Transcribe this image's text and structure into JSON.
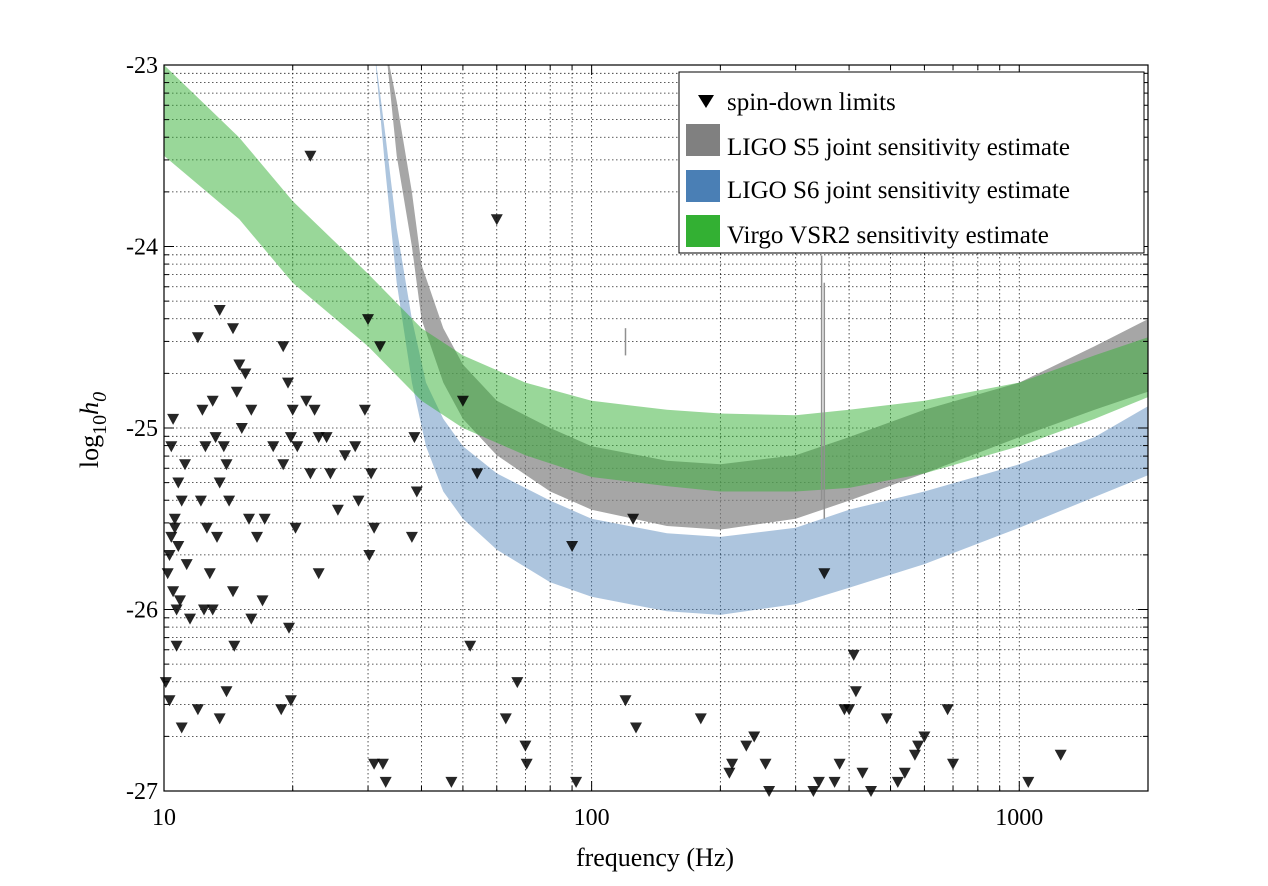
{
  "chart_data": {
    "type": "scatter",
    "xlabel": "frequency (Hz)",
    "ylabel_main": "log",
    "ylabel_sub": "10",
    "ylabel_var": "h",
    "ylabel_var_sub": "0",
    "x_scale": "log",
    "xlim": [
      10,
      2000
    ],
    "ylim": [
      -27,
      -23
    ],
    "x_ticks": [
      {
        "value": 10,
        "label": "10"
      },
      {
        "value": 100,
        "label": "100"
      },
      {
        "value": 1000,
        "label": "1000"
      }
    ],
    "y_ticks": [
      {
        "value": -23,
        "label": "-23"
      },
      {
        "value": -24,
        "label": "-24"
      },
      {
        "value": -25,
        "label": "-25"
      },
      {
        "value": -26,
        "label": "-26"
      },
      {
        "value": -27,
        "label": "-27"
      }
    ],
    "grid": true,
    "legend_position": "top-right",
    "legend": [
      {
        "label": "spin-down limits",
        "kind": "marker",
        "color": "#000000"
      },
      {
        "label": "LIGO S5 joint sensitivity estimate",
        "kind": "patch",
        "color": "#808080"
      },
      {
        "label": "LIGO S6 joint sensitivity estimate",
        "kind": "patch",
        "color": "#4a7fb5"
      },
      {
        "label": "Virgo VSR2 sensitivity estimate",
        "kind": "patch",
        "color": "#33b033"
      }
    ],
    "bands": [
      {
        "name": "LIGO S6 joint sensitivity estimate",
        "color": "#4a7fb5",
        "opacity": 0.45,
        "upper": [
          [
            31,
            -22.9
          ],
          [
            33,
            -23.4
          ],
          [
            35,
            -23.9
          ],
          [
            38,
            -24.4
          ],
          [
            41,
            -24.75
          ],
          [
            45,
            -24.95
          ],
          [
            50,
            -25.1
          ],
          [
            60,
            -25.25
          ],
          [
            80,
            -25.4
          ],
          [
            100,
            -25.5
          ],
          [
            150,
            -25.58
          ],
          [
            200,
            -25.6
          ],
          [
            300,
            -25.55
          ],
          [
            400,
            -25.45
          ],
          [
            600,
            -25.35
          ],
          [
            1000,
            -25.2
          ],
          [
            1500,
            -25.05
          ],
          [
            2000,
            -24.88
          ]
        ],
        "lower": [
          [
            31,
            -22.9
          ],
          [
            33,
            -23.6
          ],
          [
            35,
            -24.2
          ],
          [
            38,
            -24.75
          ],
          [
            41,
            -25.1
          ],
          [
            45,
            -25.35
          ],
          [
            50,
            -25.5
          ],
          [
            60,
            -25.67
          ],
          [
            80,
            -25.85
          ],
          [
            100,
            -25.93
          ],
          [
            150,
            -26.01
          ],
          [
            200,
            -26.03
          ],
          [
            300,
            -25.97
          ],
          [
            400,
            -25.88
          ],
          [
            600,
            -25.75
          ],
          [
            1000,
            -25.55
          ],
          [
            1500,
            -25.38
          ],
          [
            2000,
            -25.26
          ]
        ]
      },
      {
        "name": "LIGO S5 joint sensitivity estimate",
        "color": "#808080",
        "opacity": 0.7,
        "upper": [
          [
            33,
            -22.9
          ],
          [
            35,
            -23.2
          ],
          [
            38,
            -23.7
          ],
          [
            40,
            -24.1
          ],
          [
            45,
            -24.45
          ],
          [
            50,
            -24.65
          ],
          [
            60,
            -24.85
          ],
          [
            80,
            -25.0
          ],
          [
            100,
            -25.1
          ],
          [
            150,
            -25.18
          ],
          [
            200,
            -25.2
          ],
          [
            300,
            -25.15
          ],
          [
            400,
            -25.05
          ],
          [
            600,
            -24.9
          ],
          [
            1000,
            -24.75
          ],
          [
            1500,
            -24.55
          ],
          [
            2000,
            -24.4
          ]
        ],
        "lower": [
          [
            33,
            -22.9
          ],
          [
            35,
            -23.5
          ],
          [
            38,
            -24.0
          ],
          [
            40,
            -24.4
          ],
          [
            45,
            -24.75
          ],
          [
            50,
            -24.95
          ],
          [
            60,
            -25.15
          ],
          [
            80,
            -25.35
          ],
          [
            100,
            -25.45
          ],
          [
            150,
            -25.54
          ],
          [
            200,
            -25.56
          ],
          [
            300,
            -25.5
          ],
          [
            400,
            -25.4
          ],
          [
            600,
            -25.25
          ],
          [
            1000,
            -25.05
          ],
          [
            1500,
            -24.9
          ],
          [
            2000,
            -24.8
          ]
        ]
      },
      {
        "name": "Virgo VSR2 sensitivity estimate",
        "color": "#33b033",
        "opacity": 0.5,
        "upper": [
          [
            10,
            -23.0
          ],
          [
            15,
            -23.4
          ],
          [
            20,
            -23.75
          ],
          [
            30,
            -24.15
          ],
          [
            40,
            -24.45
          ],
          [
            50,
            -24.6
          ],
          [
            70,
            -24.75
          ],
          [
            100,
            -24.85
          ],
          [
            150,
            -24.9
          ],
          [
            200,
            -24.92
          ],
          [
            300,
            -24.93
          ],
          [
            400,
            -24.9
          ],
          [
            600,
            -24.85
          ],
          [
            1000,
            -24.75
          ],
          [
            1500,
            -24.6
          ],
          [
            2000,
            -24.5
          ]
        ],
        "lower": [
          [
            10,
            -23.5
          ],
          [
            15,
            -23.85
          ],
          [
            20,
            -24.2
          ],
          [
            30,
            -24.55
          ],
          [
            40,
            -24.85
          ],
          [
            50,
            -25.0
          ],
          [
            70,
            -25.15
          ],
          [
            100,
            -25.27
          ],
          [
            150,
            -25.32
          ],
          [
            200,
            -25.35
          ],
          [
            300,
            -25.35
          ],
          [
            400,
            -25.33
          ],
          [
            600,
            -25.25
          ],
          [
            1000,
            -25.1
          ],
          [
            1500,
            -24.95
          ],
          [
            2000,
            -24.83
          ]
        ]
      }
    ],
    "spikes": [
      {
        "x": 120,
        "y_top": -24.45,
        "y_bottom": -24.6,
        "color": "#909090"
      },
      {
        "x": 345,
        "y_top": -24.05,
        "y_bottom": -25.4,
        "color": "#909090"
      },
      {
        "x": 350,
        "y_top": -24.2,
        "y_bottom": -25.5,
        "color": "#909090"
      }
    ],
    "series": [
      {
        "name": "spin-down limits",
        "marker": "triangle-down",
        "color": "#000000",
        "points": [
          [
            10.1,
            -26.4
          ],
          [
            10.2,
            -25.8
          ],
          [
            10.3,
            -25.7
          ],
          [
            10.4,
            -25.6
          ],
          [
            10.5,
            -25.9
          ],
          [
            10.6,
            -25.55
          ],
          [
            10.7,
            -26.0
          ],
          [
            10.8,
            -25.65
          ],
          [
            10.9,
            -25.95
          ],
          [
            11.0,
            -25.4
          ],
          [
            11.2,
            -25.2
          ],
          [
            11.3,
            -25.75
          ],
          [
            11.5,
            -26.05
          ],
          [
            10.3,
            -26.5
          ],
          [
            10.7,
            -26.2
          ],
          [
            11.0,
            -26.65
          ],
          [
            10.4,
            -25.1
          ],
          [
            10.5,
            -24.95
          ],
          [
            10.8,
            -25.3
          ],
          [
            10.6,
            -25.5
          ],
          [
            12.0,
            -24.5
          ],
          [
            12.3,
            -24.9
          ],
          [
            12.5,
            -25.1
          ],
          [
            12.2,
            -25.4
          ],
          [
            12.6,
            -25.55
          ],
          [
            12.8,
            -25.8
          ],
          [
            12.4,
            -26.0
          ],
          [
            12.0,
            -26.55
          ],
          [
            13.0,
            -24.85
          ],
          [
            13.2,
            -25.05
          ],
          [
            13.5,
            -25.3
          ],
          [
            13.3,
            -25.6
          ],
          [
            13.0,
            -26.0
          ],
          [
            13.8,
            -25.1
          ],
          [
            14.0,
            -25.2
          ],
          [
            14.2,
            -25.4
          ],
          [
            14.5,
            -25.9
          ],
          [
            14.6,
            -26.2
          ],
          [
            13.5,
            -26.6
          ],
          [
            13.5,
            -24.35
          ],
          [
            14.5,
            -24.45
          ],
          [
            15.0,
            -24.65
          ],
          [
            14.8,
            -24.8
          ],
          [
            15.2,
            -25.0
          ],
          [
            15.5,
            -24.7
          ],
          [
            16.0,
            -24.9
          ],
          [
            15.8,
            -25.5
          ],
          [
            16.5,
            -25.6
          ],
          [
            17.0,
            -25.95
          ],
          [
            16.0,
            -26.05
          ],
          [
            14.0,
            -26.45
          ],
          [
            17.2,
            -25.5
          ],
          [
            18.0,
            -25.1
          ],
          [
            19.0,
            -24.55
          ],
          [
            19.5,
            -24.75
          ],
          [
            20.0,
            -24.9
          ],
          [
            19.8,
            -25.05
          ],
          [
            20.5,
            -25.1
          ],
          [
            19.0,
            -25.2
          ],
          [
            20.3,
            -25.55
          ],
          [
            19.6,
            -26.1
          ],
          [
            19.8,
            -26.5
          ],
          [
            18.8,
            -26.55
          ],
          [
            22.0,
            -23.5
          ],
          [
            21.5,
            -24.85
          ],
          [
            22.5,
            -24.9
          ],
          [
            23.0,
            -25.05
          ],
          [
            22.0,
            -25.25
          ],
          [
            24.0,
            -25.05
          ],
          [
            24.5,
            -25.25
          ],
          [
            23.0,
            -25.8
          ],
          [
            25.5,
            -25.45
          ],
          [
            26.5,
            -25.15
          ],
          [
            28.0,
            -25.1
          ],
          [
            28.5,
            -25.4
          ],
          [
            30.0,
            -24.4
          ],
          [
            30.5,
            -25.25
          ],
          [
            31.0,
            -25.55
          ],
          [
            30.2,
            -25.7
          ],
          [
            32.0,
            -24.55
          ],
          [
            29.5,
            -24.9
          ],
          [
            31.0,
            -26.85
          ],
          [
            32.5,
            -26.85
          ],
          [
            33.0,
            -26.95
          ],
          [
            33.5,
            -27.05
          ],
          [
            38.0,
            -25.6
          ],
          [
            38.5,
            -25.05
          ],
          [
            39.0,
            -25.35
          ],
          [
            42.0,
            -27.05
          ],
          [
            47.0,
            -26.95
          ],
          [
            50.0,
            -24.85
          ],
          [
            52.0,
            -26.2
          ],
          [
            54.0,
            -25.25
          ],
          [
            60.0,
            -23.85
          ],
          [
            63.0,
            -26.6
          ],
          [
            67.0,
            -26.4
          ],
          [
            70.0,
            -26.75
          ],
          [
            70.5,
            -26.85
          ],
          [
            90.0,
            -25.65
          ],
          [
            92.0,
            -26.95
          ],
          [
            120.0,
            -26.5
          ],
          [
            125.0,
            -25.5
          ],
          [
            127.0,
            -26.65
          ],
          [
            180.0,
            -26.6
          ],
          [
            210.0,
            -26.9
          ],
          [
            213.0,
            -26.85
          ],
          [
            230.0,
            -26.75
          ],
          [
            240.0,
            -26.7
          ],
          [
            255.0,
            -26.85
          ],
          [
            260.0,
            -27.0
          ],
          [
            330.0,
            -27.0
          ],
          [
            340.0,
            -26.95
          ],
          [
            350.0,
            -25.8
          ],
          [
            370.0,
            -26.95
          ],
          [
            380.0,
            -26.85
          ],
          [
            390.0,
            -26.55
          ],
          [
            400.0,
            -26.55
          ],
          [
            410.0,
            -26.25
          ],
          [
            415.0,
            -26.45
          ],
          [
            430.0,
            -26.9
          ],
          [
            450.0,
            -27.0
          ],
          [
            490.0,
            -26.6
          ],
          [
            520.0,
            -26.95
          ],
          [
            540.0,
            -26.9
          ],
          [
            550.0,
            -27.05
          ],
          [
            570.0,
            -26.8
          ],
          [
            580.0,
            -26.75
          ],
          [
            600.0,
            -26.7
          ],
          [
            680.0,
            -26.55
          ],
          [
            700.0,
            -26.85
          ],
          [
            1050.0,
            -26.95
          ],
          [
            1250.0,
            -26.8
          ]
        ]
      }
    ]
  }
}
